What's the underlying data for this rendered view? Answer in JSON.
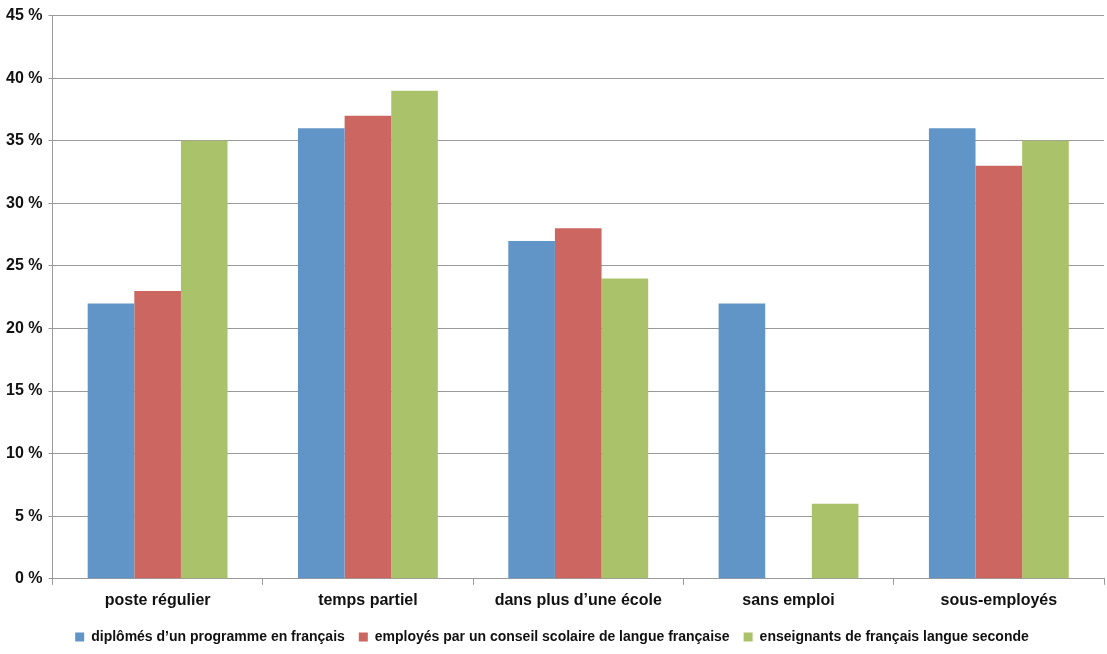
{
  "chart_data": {
    "type": "bar",
    "categories": [
      "poste régulier",
      "temps partiel",
      "dans plus d’une école",
      "sans emploi",
      "sous-employés"
    ],
    "series": [
      {
        "name": "diplômés d’un programme en français",
        "color": "#6195c8",
        "values": [
          22,
          36,
          27,
          22,
          36
        ]
      },
      {
        "name": "employés par un conseil scolaire de langue française",
        "color": "#cc6661",
        "values": [
          23,
          37,
          28,
          null,
          33
        ]
      },
      {
        "name": "enseignants de français langue seconde",
        "color": "#aac36b",
        "values": [
          35,
          39,
          24,
          6,
          35
        ]
      }
    ],
    "ylim": [
      0,
      45
    ],
    "yticks": [
      {
        "value": 0,
        "label": "0 %"
      },
      {
        "value": 5,
        "label": "5 %"
      },
      {
        "value": 10,
        "label": "10 %"
      },
      {
        "value": 15,
        "label": "15 %"
      },
      {
        "value": 20,
        "label": "20 %"
      },
      {
        "value": 25,
        "label": "25 %"
      },
      {
        "value": 30,
        "label": "30 %"
      },
      {
        "value": 35,
        "label": "35 %"
      },
      {
        "value": 40,
        "label": "40 %"
      },
      {
        "value": 45,
        "label": "45 %"
      }
    ],
    "grid": "y",
    "legend": "bottom"
  }
}
